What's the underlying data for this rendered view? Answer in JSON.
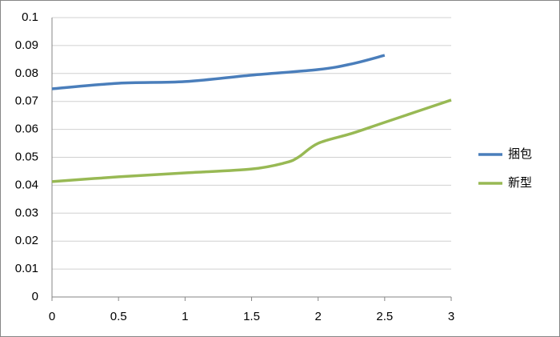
{
  "chart_data": {
    "type": "line",
    "series": [
      {
        "name": "捆包",
        "color": "#4a7ebb",
        "x": [
          0,
          0.5,
          1,
          1.5,
          2,
          2.25,
          2.5
        ],
        "values": [
          0.0745,
          0.0765,
          0.0771,
          0.0794,
          0.0814,
          0.0834,
          0.0865
        ]
      },
      {
        "name": "新型",
        "color": "#98b954",
        "x": [
          0,
          0.5,
          1,
          1.5,
          1.75,
          1.85,
          2,
          2.25,
          2.5,
          3
        ],
        "values": [
          0.0413,
          0.043,
          0.0444,
          0.0458,
          0.048,
          0.05,
          0.055,
          0.0585,
          0.0625,
          0.0705
        ]
      }
    ],
    "xlim": [
      0,
      3
    ],
    "xticks": [
      0,
      0.5,
      1,
      1.5,
      2,
      2.5,
      3
    ],
    "ylim": [
      0,
      0.1
    ],
    "yticks": [
      0,
      0.01,
      0.02,
      0.03,
      0.04,
      0.05,
      0.06,
      0.07,
      0.08,
      0.09,
      0.1
    ],
    "grid": true,
    "legend": "right"
  }
}
